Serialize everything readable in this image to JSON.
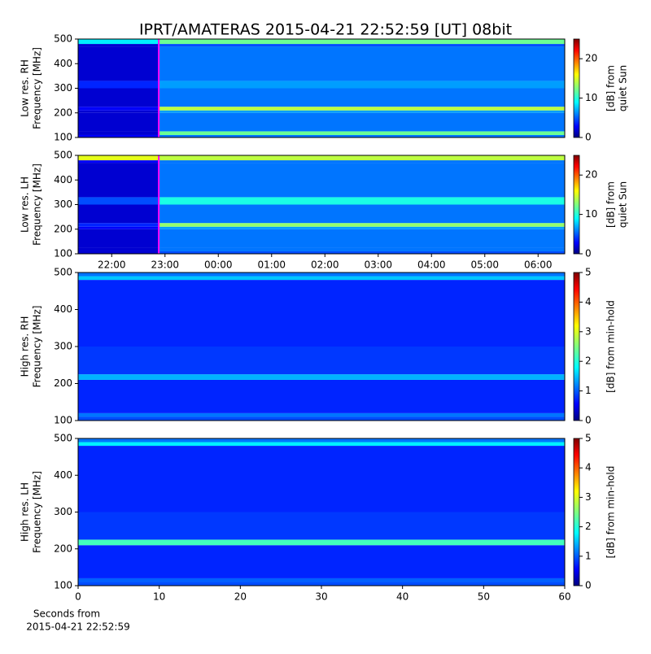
{
  "title": "IPRT/AMATERAS 2015-04-21 22:52:59 [UT]   08bit",
  "chart_data": [
    {
      "type": "heatmap",
      "ylabel": [
        "Low res. RH",
        "Frequency [MHz]"
      ],
      "ylim": [
        100,
        500
      ],
      "yticks": [
        100,
        200,
        300,
        400,
        500
      ],
      "xlim": [
        21.37,
        30.5
      ],
      "x": [
        21.37,
        22.883,
        30.5
      ],
      "y": [
        100,
        110,
        125,
        200,
        210,
        225,
        300,
        330,
        470,
        480,
        500
      ],
      "z": [
        [
          3,
          6
        ],
        [
          2,
          12
        ],
        [
          2,
          6
        ],
        [
          2,
          7
        ],
        [
          3,
          14
        ],
        [
          2,
          6
        ],
        [
          4,
          7
        ],
        [
          2,
          6
        ],
        [
          2,
          5
        ],
        [
          9,
          12
        ]
      ],
      "marker_x": 22.883,
      "marker_color": "#ff00ff",
      "colorbar": {
        "label": [
          "[dB] from",
          "quiet Sun"
        ],
        "lim": [
          0,
          25
        ],
        "ticks": [
          0,
          10,
          20
        ]
      }
    },
    {
      "type": "heatmap",
      "ylabel": [
        "Low res. LH",
        "Frequency [MHz]"
      ],
      "ylim": [
        100,
        500
      ],
      "yticks": [
        100,
        200,
        300,
        400,
        500
      ],
      "xlim": [
        21.37,
        30.5
      ],
      "xticks": [
        {
          "value": 22,
          "label": "22:00"
        },
        {
          "value": 23,
          "label": "23:00"
        },
        {
          "value": 24,
          "label": "00:00"
        },
        {
          "value": 25,
          "label": "01:00"
        },
        {
          "value": 26,
          "label": "02:00"
        },
        {
          "value": 27,
          "label": "03:00"
        },
        {
          "value": 28,
          "label": "04:00"
        },
        {
          "value": 29,
          "label": "05:00"
        },
        {
          "value": 30,
          "label": "06:00"
        }
      ],
      "x": [
        21.37,
        22.883,
        30.5
      ],
      "y": [
        100,
        110,
        125,
        200,
        210,
        225,
        300,
        330,
        470,
        480,
        500
      ],
      "z": [
        [
          2,
          5
        ],
        [
          2,
          6
        ],
        [
          2,
          6
        ],
        [
          3,
          7
        ],
        [
          4,
          13
        ],
        [
          2,
          6
        ],
        [
          5,
          10
        ],
        [
          2,
          6
        ],
        [
          3,
          6
        ],
        [
          15,
          14
        ]
      ],
      "marker_x": 22.883,
      "marker_color": "#ff00ff",
      "colorbar": {
        "label": [
          "[dB] from",
          "quiet Sun"
        ],
        "lim": [
          0,
          25
        ],
        "ticks": [
          0,
          10,
          20
        ]
      }
    },
    {
      "type": "heatmap",
      "ylabel": [
        "High res. RH",
        "Frequency [MHz]"
      ],
      "ylim": [
        100,
        500
      ],
      "yticks": [
        100,
        200,
        300,
        400,
        500
      ],
      "xlim": [
        0,
        60
      ],
      "x": [
        0,
        60
      ],
      "y": [
        100,
        110,
        120,
        210,
        225,
        300,
        480,
        490,
        500
      ],
      "z": [
        [
          1
        ],
        [
          1.2
        ],
        [
          0.8
        ],
        [
          1.5
        ],
        [
          0.9
        ],
        [
          0.8
        ],
        [
          1.6
        ],
        [
          1.2
        ]
      ],
      "colorbar": {
        "label": [
          "[dB] from min-hold"
        ],
        "lim": [
          0,
          5
        ],
        "ticks": [
          0,
          1,
          2,
          3,
          4,
          5
        ]
      }
    },
    {
      "type": "heatmap",
      "ylabel": [
        "High res. LH",
        "Frequency [MHz]"
      ],
      "ylim": [
        100,
        500
      ],
      "yticks": [
        100,
        200,
        300,
        400,
        500
      ],
      "xlim": [
        0,
        60
      ],
      "xticks": [
        0,
        10,
        20,
        30,
        40,
        50,
        60
      ],
      "xlabel": [
        "Seconds from",
        "2015-04-21 22:52:59"
      ],
      "x": [
        0,
        60
      ],
      "y": [
        100,
        110,
        120,
        210,
        225,
        300,
        480,
        490,
        500
      ],
      "z": [
        [
          1
        ],
        [
          1.1
        ],
        [
          0.8
        ],
        [
          2.2
        ],
        [
          0.9
        ],
        [
          0.8
        ],
        [
          1.8
        ],
        [
          1.2
        ]
      ],
      "colorbar": {
        "label": [
          "[dB] from min-hold"
        ],
        "lim": [
          0,
          5
        ],
        "ticks": [
          0,
          1,
          2,
          3,
          4,
          5
        ]
      }
    }
  ]
}
